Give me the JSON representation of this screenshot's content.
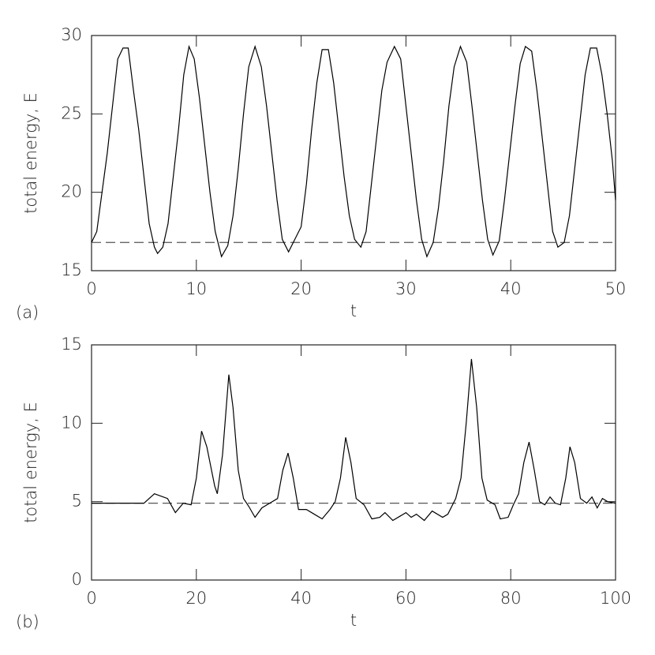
{
  "chart_data": [
    {
      "type": "line",
      "panel_label": "(a)",
      "xlabel": "t",
      "ylabel": "total energy, E",
      "xlim": [
        0,
        50
      ],
      "ylim": [
        15,
        30
      ],
      "xticks": [
        0,
        10,
        20,
        30,
        40,
        50
      ],
      "yticks": [
        15,
        20,
        25,
        30
      ],
      "color": "#000000",
      "hline": 16.8,
      "hline_color": "#555555",
      "x": [
        0,
        0.5,
        1,
        1.5,
        2,
        2.5,
        3,
        3.5,
        4,
        4.5,
        5,
        5.5,
        6,
        6.3,
        6.8,
        7.3,
        7.8,
        8.3,
        8.8,
        9.3,
        9.8,
        10.3,
        10.8,
        11.3,
        11.8,
        12.4,
        13,
        13.5,
        14,
        14.5,
        15,
        15.6,
        16.2,
        16.7,
        17.2,
        17.7,
        18.2,
        18.8,
        19.4,
        20,
        20.5,
        21,
        21.5,
        22,
        22.6,
        23.1,
        23.6,
        24.1,
        24.6,
        25.1,
        25.7,
        26.2,
        26.7,
        27.2,
        27.7,
        28.2,
        28.9,
        29.5,
        30,
        30.5,
        31,
        31.5,
        32,
        32.6,
        33.1,
        33.6,
        34.1,
        34.6,
        35.2,
        35.8,
        36.3,
        36.8,
        37.3,
        37.8,
        38.3,
        38.9,
        39.4,
        39.9,
        40.4,
        40.9,
        41.4,
        42,
        42.5,
        43,
        43.5,
        44,
        44.5,
        45.1,
        45.6,
        46.1,
        46.6,
        47.1,
        47.6,
        48.2,
        48.7,
        49.2,
        49.7,
        50
      ],
      "values": [
        16.8,
        17.5,
        20,
        22.5,
        25.5,
        28.5,
        29.2,
        29.2,
        26.5,
        24,
        21,
        18,
        16.5,
        16.1,
        16.5,
        18,
        21,
        24,
        27.5,
        29.3,
        28.5,
        26,
        23,
        20,
        17.5,
        15.9,
        16.6,
        18.5,
        21.5,
        25,
        28,
        29.3,
        28,
        25.5,
        22.5,
        19.5,
        17,
        16.2,
        17,
        17.8,
        20.5,
        24,
        27,
        29.1,
        29.1,
        27,
        24,
        21,
        18.5,
        17,
        16.5,
        17.5,
        20.5,
        23.5,
        26.5,
        28.3,
        29.3,
        28.5,
        25.5,
        22.5,
        19.5,
        17,
        15.9,
        16.8,
        19,
        22,
        25.5,
        28,
        29.3,
        28.3,
        25.5,
        22.5,
        19.5,
        17,
        16,
        16.9,
        19.5,
        22.5,
        25.5,
        28.2,
        29.3,
        29,
        26.5,
        23.5,
        20.5,
        17.5,
        16.5,
        16.8,
        18.5,
        21.5,
        24.5,
        27.5,
        29.2,
        29.2,
        27.5,
        25,
        22,
        19.5
      ]
    },
    {
      "type": "line",
      "panel_label": "(b)",
      "xlabel": "t",
      "ylabel": "total energy, E",
      "xlim": [
        0,
        100
      ],
      "ylim": [
        0,
        15
      ],
      "xticks": [
        0,
        20,
        40,
        60,
        80,
        100
      ],
      "yticks": [
        0,
        5,
        10,
        15
      ],
      "color": "#000000",
      "hline": 4.9,
      "hline_color": "#555555",
      "x": [
        0,
        10,
        12,
        14.5,
        16,
        17.5,
        19,
        20,
        21,
        22,
        23.5,
        24,
        25,
        26.2,
        27,
        28,
        29,
        30,
        31.2,
        32.5,
        34,
        35.5,
        36.5,
        37.5,
        38.5,
        39.5,
        41,
        42.5,
        44,
        45.5,
        46.5,
        47.5,
        48.5,
        49.5,
        50.5,
        52,
        53.5,
        55,
        56,
        57.5,
        59,
        60,
        61,
        62,
        63.5,
        65,
        67,
        68,
        69.5,
        70.5,
        71.5,
        72.5,
        73.5,
        74.5,
        75.5,
        77,
        78,
        79.5,
        80.5,
        81.5,
        82.5,
        83.5,
        84.5,
        85.5,
        86.5,
        87.5,
        88.5,
        89.5,
        90.5,
        91.3,
        92.2,
        93.3,
        94.5,
        95.5,
        96.5,
        97.5,
        98.5,
        100
      ],
      "values": [
        4.9,
        4.9,
        5.5,
        5.2,
        4.3,
        4.9,
        4.8,
        6.5,
        9.5,
        8.5,
        6,
        5.5,
        8,
        13.1,
        11,
        7,
        5.2,
        4.7,
        4,
        4.6,
        4.9,
        5.2,
        7,
        8.1,
        6.5,
        4.5,
        4.5,
        4.2,
        3.9,
        4.5,
        5,
        6.5,
        9.1,
        7.5,
        5.2,
        4.8,
        3.9,
        4,
        4.3,
        3.8,
        4.1,
        4.3,
        4,
        4.2,
        3.8,
        4.4,
        4,
        4.2,
        5.2,
        6.5,
        10,
        14.1,
        11,
        6.5,
        5.1,
        4.8,
        3.9,
        4,
        4.8,
        5.5,
        7.5,
        8.8,
        7,
        5,
        4.8,
        5.3,
        4.9,
        4.8,
        6.5,
        8.5,
        7.5,
        5.2,
        4.9,
        5.3,
        4.6,
        5.2,
        5,
        4.9
      ]
    }
  ]
}
